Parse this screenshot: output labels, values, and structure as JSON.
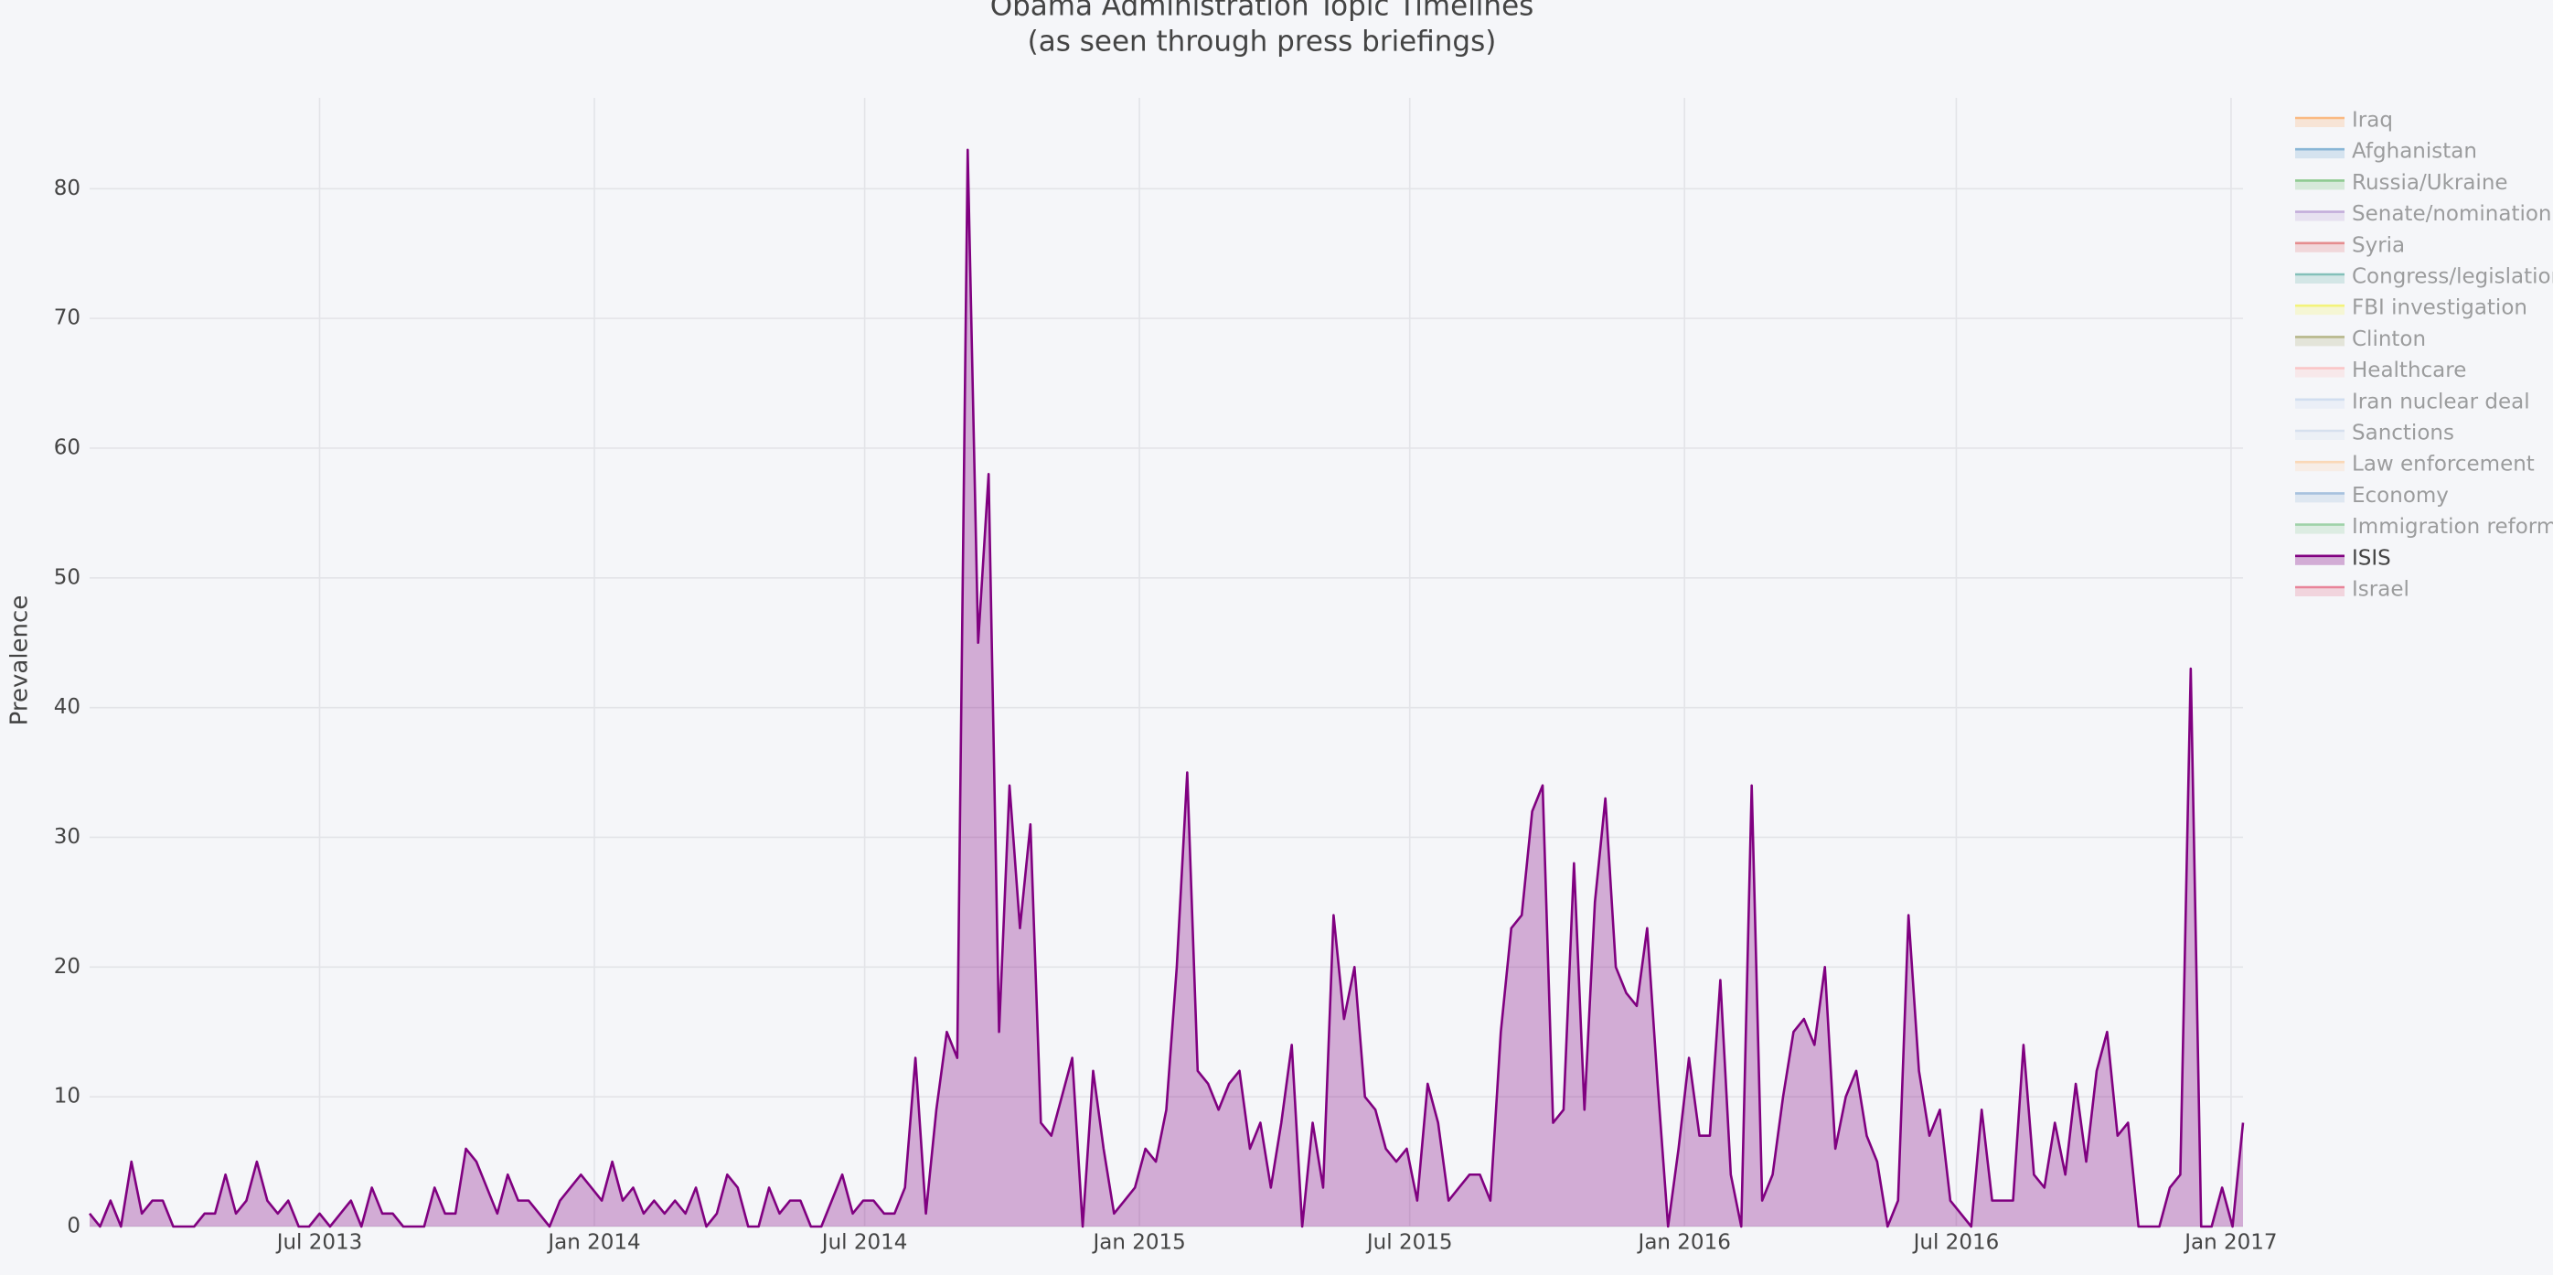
{
  "chart_data": {
    "type": "area",
    "title": "Obama Administration Topic Timelines",
    "subtitle": "(as seen through press briefings)",
    "y_label": "Prevalence",
    "grid": true,
    "legend_position": "right",
    "xlim": [
      "2013-01-28",
      "2017-01-09"
    ],
    "xticks": [
      {
        "value": "2013-07-01",
        "label": "Jul 2013"
      },
      {
        "value": "2014-01-01",
        "label": "Jan 2014"
      },
      {
        "value": "2014-07-01",
        "label": "Jul 2014"
      },
      {
        "value": "2015-01-01",
        "label": "Jan 2015"
      },
      {
        "value": "2015-07-01",
        "label": "Jul 2015"
      },
      {
        "value": "2016-01-01",
        "label": "Jan 2016"
      },
      {
        "value": "2016-07-01",
        "label": "Jul 2016"
      },
      {
        "value": "2017-01-01",
        "label": "Jan 2017"
      }
    ],
    "ylim": [
      0,
      87
    ],
    "yticks": [
      0,
      10,
      20,
      30,
      40,
      50,
      60,
      70,
      80
    ],
    "x": [
      "2013-01-28",
      "2013-02-04",
      "2013-02-11",
      "2013-02-18",
      "2013-02-25",
      "2013-03-04",
      "2013-03-11",
      "2013-03-18",
      "2013-03-25",
      "2013-04-01",
      "2013-04-08",
      "2013-04-15",
      "2013-04-22",
      "2013-04-29",
      "2013-05-06",
      "2013-05-13",
      "2013-05-20",
      "2013-05-27",
      "2013-06-03",
      "2013-06-10",
      "2013-06-17",
      "2013-06-24",
      "2013-07-01",
      "2013-07-08",
      "2013-07-15",
      "2013-07-22",
      "2013-07-29",
      "2013-08-05",
      "2013-08-12",
      "2013-08-19",
      "2013-08-26",
      "2013-09-02",
      "2013-09-09",
      "2013-09-16",
      "2013-09-23",
      "2013-09-30",
      "2013-10-07",
      "2013-10-14",
      "2013-10-21",
      "2013-10-28",
      "2013-11-04",
      "2013-11-11",
      "2013-11-18",
      "2013-11-25",
      "2013-12-02",
      "2013-12-09",
      "2013-12-16",
      "2013-12-23",
      "2013-12-30",
      "2014-01-06",
      "2014-01-13",
      "2014-01-20",
      "2014-01-27",
      "2014-02-03",
      "2014-02-10",
      "2014-02-17",
      "2014-02-24",
      "2014-03-03",
      "2014-03-10",
      "2014-03-17",
      "2014-03-24",
      "2014-03-31",
      "2014-04-07",
      "2014-04-14",
      "2014-04-21",
      "2014-04-28",
      "2014-05-05",
      "2014-05-12",
      "2014-05-19",
      "2014-05-26",
      "2014-06-02",
      "2014-06-09",
      "2014-06-16",
      "2014-06-23",
      "2014-06-30",
      "2014-07-07",
      "2014-07-14",
      "2014-07-21",
      "2014-07-28",
      "2014-08-04",
      "2014-08-11",
      "2014-08-18",
      "2014-08-25",
      "2014-09-01",
      "2014-09-08",
      "2014-09-15",
      "2014-09-22",
      "2014-09-29",
      "2014-10-06",
      "2014-10-13",
      "2014-10-20",
      "2014-10-27",
      "2014-11-03",
      "2014-11-10",
      "2014-11-17",
      "2014-11-24",
      "2014-12-01",
      "2014-12-08",
      "2014-12-15",
      "2014-12-22",
      "2014-12-29",
      "2015-01-05",
      "2015-01-12",
      "2015-01-19",
      "2015-01-26",
      "2015-02-02",
      "2015-02-09",
      "2015-02-16",
      "2015-02-23",
      "2015-03-02",
      "2015-03-09",
      "2015-03-16",
      "2015-03-23",
      "2015-03-30",
      "2015-04-06",
      "2015-04-13",
      "2015-04-20",
      "2015-04-27",
      "2015-05-04",
      "2015-05-11",
      "2015-05-18",
      "2015-05-25",
      "2015-06-01",
      "2015-06-08",
      "2015-06-15",
      "2015-06-22",
      "2015-06-29",
      "2015-07-06",
      "2015-07-13",
      "2015-07-20",
      "2015-07-27",
      "2015-08-03",
      "2015-08-10",
      "2015-08-17",
      "2015-08-24",
      "2015-08-31",
      "2015-09-07",
      "2015-09-14",
      "2015-09-21",
      "2015-09-28",
      "2015-10-05",
      "2015-10-12",
      "2015-10-19",
      "2015-10-26",
      "2015-11-02",
      "2015-11-09",
      "2015-11-16",
      "2015-11-23",
      "2015-11-30",
      "2015-12-07",
      "2015-12-14",
      "2015-12-21",
      "2015-12-28",
      "2016-01-04",
      "2016-01-11",
      "2016-01-18",
      "2016-01-25",
      "2016-02-01",
      "2016-02-08",
      "2016-02-15",
      "2016-02-22",
      "2016-02-29",
      "2016-03-07",
      "2016-03-14",
      "2016-03-21",
      "2016-03-28",
      "2016-04-04",
      "2016-04-11",
      "2016-04-18",
      "2016-04-25",
      "2016-05-02",
      "2016-05-09",
      "2016-05-16",
      "2016-05-23",
      "2016-05-30",
      "2016-06-06",
      "2016-06-13",
      "2016-06-20",
      "2016-06-27",
      "2016-07-04",
      "2016-07-11",
      "2016-07-18",
      "2016-07-25",
      "2016-08-01",
      "2016-08-08",
      "2016-08-15",
      "2016-08-22",
      "2016-08-29",
      "2016-09-05",
      "2016-09-12",
      "2016-09-19",
      "2016-09-26",
      "2016-10-03",
      "2016-10-10",
      "2016-10-17",
      "2016-10-24",
      "2016-10-31",
      "2016-11-07",
      "2016-11-14",
      "2016-11-21",
      "2016-11-28",
      "2016-12-05",
      "2016-12-12",
      "2016-12-19",
      "2016-12-26",
      "2017-01-02",
      "2017-01-09"
    ],
    "series": [
      {
        "name": "Iraq",
        "color": "#ff7f0e",
        "visible": false
      },
      {
        "name": "Afghanistan",
        "color": "#1f77b4",
        "visible": false
      },
      {
        "name": "Russia/Ukraine",
        "color": "#2ca02c",
        "visible": false
      },
      {
        "name": "Senate/nomination",
        "color": "#9467bd",
        "visible": false
      },
      {
        "name": "Syria",
        "color": "#d62728",
        "visible": false
      },
      {
        "name": "Congress/legislation",
        "color": "#138c7a",
        "visible": false
      },
      {
        "name": "FBI investigation",
        "color": "#f2f200",
        "visible": false
      },
      {
        "name": "Clinton",
        "color": "#7a7a20",
        "visible": false
      },
      {
        "name": "Healthcare",
        "color": "#ff9896",
        "visible": false
      },
      {
        "name": "Iran nuclear deal",
        "color": "#aec7e8",
        "visible": false
      },
      {
        "name": "Sanctions",
        "color": "#b8cce4",
        "visible": false
      },
      {
        "name": "Law enforcement",
        "color": "#ffbb78",
        "visible": false
      },
      {
        "name": "Economy",
        "color": "#5b8ec4",
        "visible": false
      },
      {
        "name": "Immigration reform",
        "color": "#4cb05c",
        "visible": false
      },
      {
        "name": "ISIS",
        "color": "#800080",
        "visible": true,
        "values": [
          1,
          0,
          2,
          0,
          5,
          1,
          2,
          2,
          0,
          0,
          0,
          1,
          1,
          4,
          1,
          2,
          5,
          2,
          1,
          2,
          0,
          0,
          1,
          0,
          1,
          2,
          0,
          3,
          1,
          1,
          0,
          0,
          0,
          3,
          1,
          1,
          6,
          5,
          3,
          1,
          4,
          2,
          2,
          1,
          0,
          2,
          3,
          4,
          3,
          2,
          5,
          2,
          3,
          1,
          2,
          1,
          2,
          1,
          3,
          0,
          1,
          4,
          3,
          0,
          0,
          3,
          1,
          2,
          2,
          0,
          0,
          2,
          4,
          1,
          2,
          2,
          1,
          1,
          3,
          13,
          1,
          9,
          15,
          13,
          83,
          45,
          58,
          15,
          34,
          23,
          31,
          8,
          7,
          10,
          13,
          0,
          12,
          6,
          1,
          2,
          3,
          6,
          5,
          9,
          20,
          35,
          12,
          11,
          9,
          11,
          12,
          6,
          8,
          3,
          8,
          14,
          0,
          8,
          3,
          24,
          16,
          20,
          10,
          9,
          6,
          5,
          6,
          2,
          11,
          8,
          2,
          3,
          4,
          4,
          2,
          15,
          23,
          24,
          32,
          34,
          8,
          9,
          28,
          9,
          25,
          33,
          20,
          18,
          17,
          23,
          11,
          0,
          6,
          13,
          7,
          7,
          19,
          4,
          0,
          34,
          2,
          4,
          10,
          15,
          16,
          14,
          20,
          6,
          10,
          12,
          7,
          5,
          0,
          2,
          24,
          12,
          7,
          9,
          2,
          1,
          0,
          9,
          2,
          2,
          2,
          14,
          4,
          3,
          8,
          4,
          11,
          5,
          12,
          15,
          7,
          8,
          0,
          0,
          0,
          3,
          4,
          43,
          0,
          0,
          3,
          0,
          8
        ]
      },
      {
        "name": "Israel",
        "color": "#dc143c",
        "visible": false
      }
    ]
  }
}
